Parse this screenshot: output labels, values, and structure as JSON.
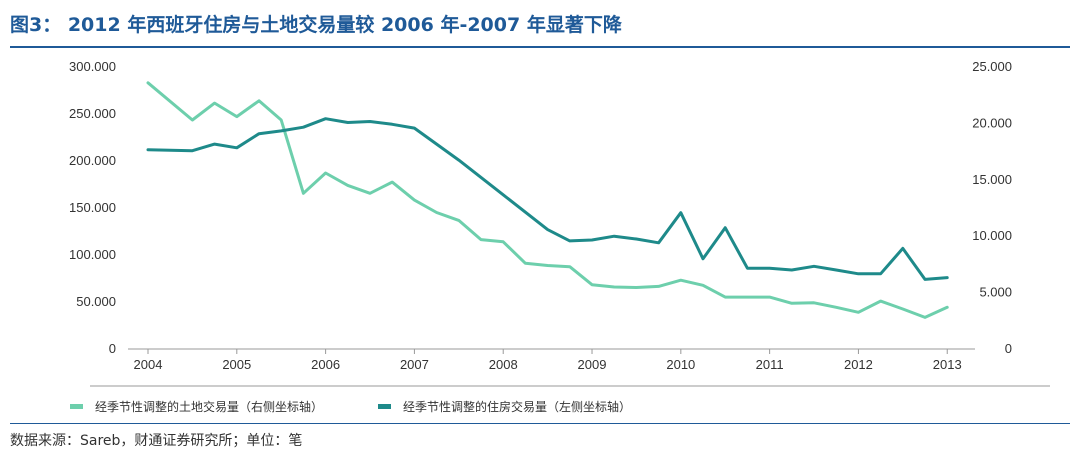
{
  "title": "图3： 2012 年西班牙住房与土地交易量较 2006 年-2007 年显著下降",
  "source": "数据来源：Sareb，财通证券研究所；单位：笔",
  "chart_data": {
    "type": "line",
    "title": "图3： 2012 年西班牙住房与土地交易量较 2006 年-2007 年显著下降",
    "x_tick_labels": [
      "2004",
      "2005",
      "2006",
      "2007",
      "2008",
      "2009",
      "2010",
      "2011",
      "2012",
      "2013"
    ],
    "xlim": [
      2004,
      2013.2
    ],
    "y_left": {
      "ticks": [
        "0",
        "50.000",
        "100.000",
        "150.000",
        "200.000",
        "250.000",
        "300.000"
      ],
      "ylim": [
        0,
        300000
      ]
    },
    "y_right": {
      "ticks": [
        "0",
        "5.000",
        "10.000",
        "15.000",
        "20.000",
        "25.000"
      ],
      "ylim": [
        0,
        25000
      ]
    },
    "legend_position": "bottom",
    "series": [
      {
        "name": "经季节性调整的土地交易量（右侧坐标轴）",
        "axis": "right",
        "color": "#6dcfac",
        "x": [
          2004.0,
          2004.5,
          2004.75,
          2005.0,
          2005.25,
          2005.5,
          2005.75,
          2006.0,
          2006.25,
          2006.5,
          2006.75,
          2007.0,
          2007.25,
          2007.5,
          2007.75,
          2008.0,
          2008.25,
          2008.5,
          2008.75,
          2009.0,
          2009.25,
          2009.5,
          2009.75,
          2010.0,
          2010.25,
          2010.5,
          2010.75,
          2011.0,
          2011.25,
          2011.5,
          2011.75,
          2012.0,
          2012.25,
          2012.5,
          2012.75,
          2013.0
        ],
        "values": [
          23600,
          20300,
          21800,
          20600,
          22000,
          20300,
          13800,
          15600,
          14500,
          13800,
          14800,
          13200,
          12100,
          11400,
          9700,
          9500,
          7600,
          7400,
          7300,
          5700,
          5500,
          5450,
          5550,
          6100,
          5650,
          4600,
          4600,
          4600,
          4050,
          4100,
          3700,
          3250,
          4250,
          3550,
          2800,
          3700
        ]
      },
      {
        "name": "经季节性调整的住房交易量（左侧坐标轴）",
        "axis": "left",
        "color": "#1e8a8a",
        "x": [
          2004.0,
          2004.5,
          2004.75,
          2005.0,
          2005.25,
          2005.5,
          2005.75,
          2006.0,
          2006.25,
          2006.5,
          2006.75,
          2007.0,
          2007.5,
          2008.0,
          2008.5,
          2008.75,
          2009.0,
          2009.25,
          2009.5,
          2009.75,
          2010.0,
          2010.25,
          2010.5,
          2010.75,
          2011.0,
          2011.25,
          2011.5,
          2011.75,
          2012.0,
          2012.25,
          2012.5,
          2012.75,
          2013.0
        ],
        "values": [
          212000,
          211000,
          218000,
          214000,
          229000,
          232000,
          236000,
          245000,
          241000,
          242000,
          239000,
          235000,
          201000,
          164000,
          127000,
          115000,
          116000,
          120000,
          117000,
          113000,
          145000,
          96000,
          129000,
          86000,
          86000,
          84000,
          88000,
          84000,
          80000,
          80000,
          107000,
          74000,
          76000
        ]
      }
    ]
  }
}
